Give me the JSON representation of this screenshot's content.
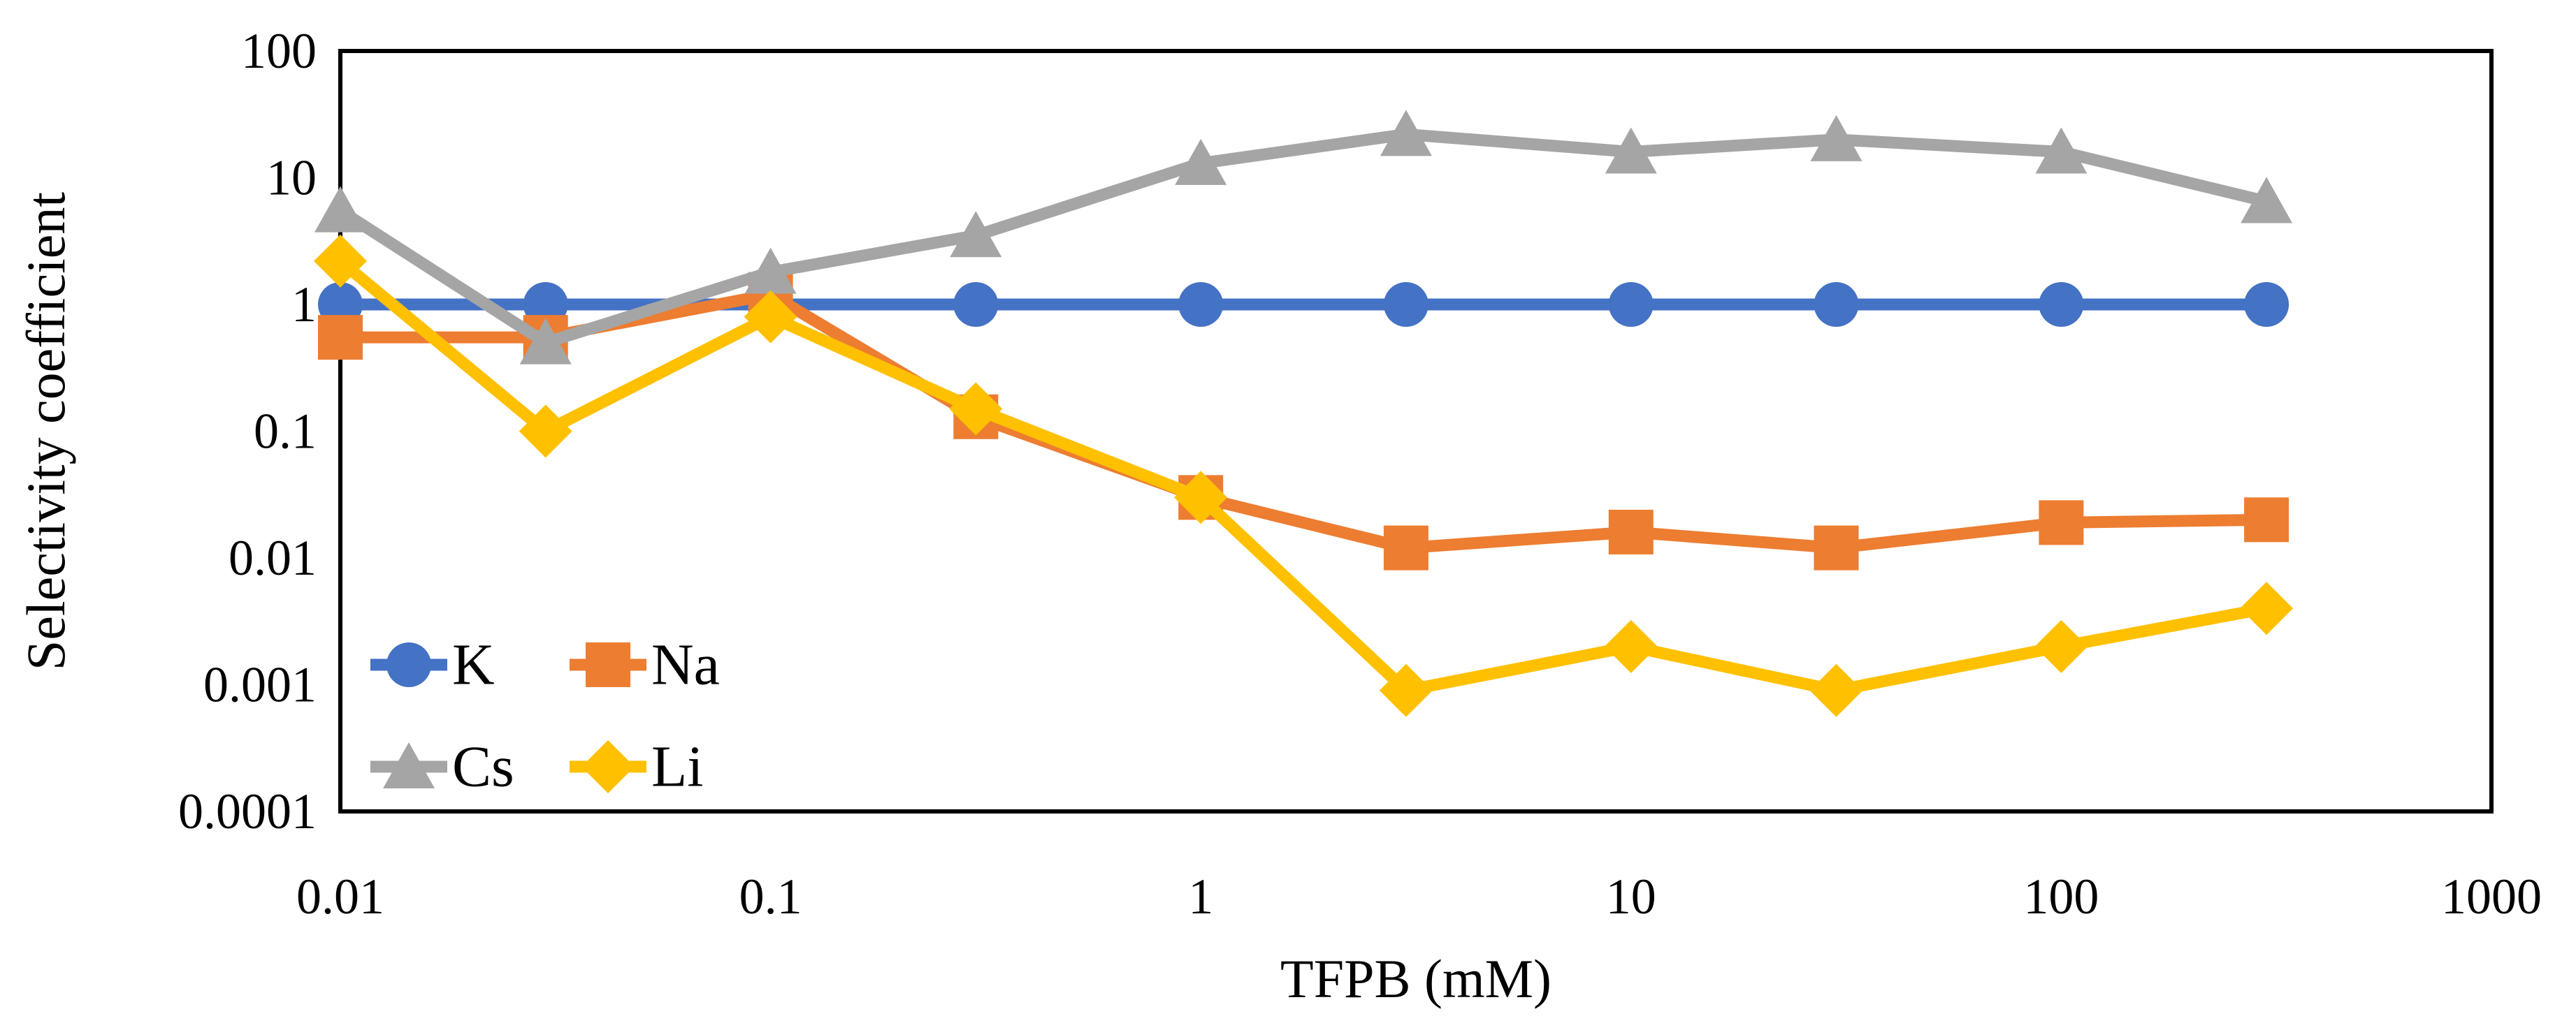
{
  "figure": {
    "background": "#ffffff",
    "axis_color": "#000000",
    "text_color": "#000000"
  },
  "chart_data": {
    "type": "line",
    "x_scale": "log",
    "y_scale": "log",
    "title": "",
    "xlabel": "TFPB (mM)",
    "ylabel": "Selectivity coefficient",
    "xlim": [
      0.01,
      1000
    ],
    "ylim": [
      0.0001,
      100
    ],
    "grid": false,
    "x": [
      0.01,
      0.03,
      0.1,
      0.3,
      1,
      3,
      10,
      30,
      100,
      300
    ],
    "series": [
      {
        "name": "K",
        "color": "#4472C4",
        "marker": "circle",
        "values": [
          1,
          1,
          1,
          1,
          1,
          1,
          1,
          1,
          1,
          1
        ]
      },
      {
        "name": "Na",
        "color": "#ED7D31",
        "marker": "square",
        "values": [
          0.55,
          0.55,
          1.2,
          0.13,
          0.03,
          0.012,
          0.016,
          0.012,
          0.019,
          0.02
        ]
      },
      {
        "name": "Cs",
        "color": "#A5A5A5",
        "marker": "triangle",
        "values": [
          5.5,
          0.5,
          1.8,
          3.5,
          13,
          22,
          16,
          20,
          16,
          6.5
        ]
      },
      {
        "name": "Li",
        "color": "#FFC000",
        "marker": "diamond",
        "values": [
          2.2,
          0.1,
          0.8,
          0.15,
          0.03,
          0.0009,
          0.002,
          0.0009,
          0.002,
          0.004
        ]
      }
    ],
    "x_ticks": {
      "values": [
        0.01,
        0.1,
        1,
        10,
        100,
        1000
      ],
      "labels": [
        "0.01",
        "0.1",
        "1",
        "10",
        "100",
        "1000"
      ]
    },
    "y_ticks": {
      "values": [
        100,
        10,
        1,
        0.1,
        0.01,
        0.001,
        0.0001
      ],
      "labels": [
        "100",
        "10",
        "1",
        "0.1",
        "0.01",
        "0.001",
        "0.0001"
      ]
    },
    "legend": {
      "position": "inside-bottom-left",
      "columns": 2,
      "entries": [
        "K",
        "Na",
        "Cs",
        "Li"
      ]
    }
  }
}
